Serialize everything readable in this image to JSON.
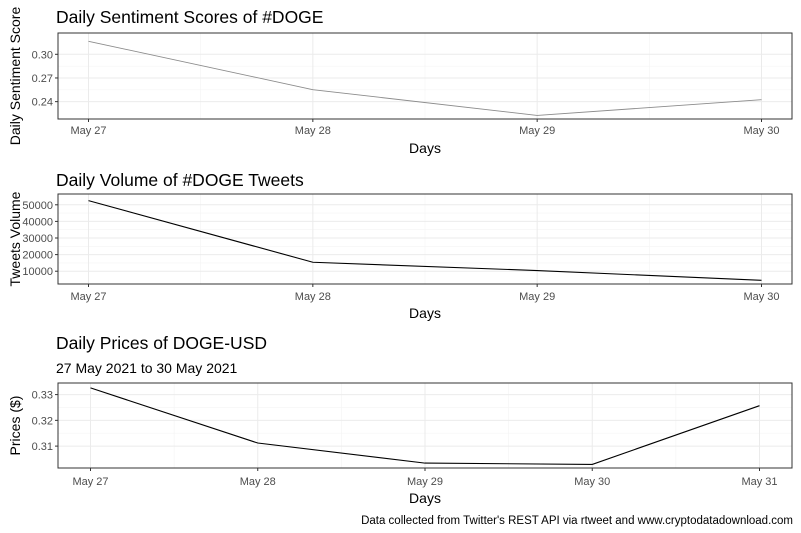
{
  "caption": "Data collected from Twitter's REST API via rtweet and www.cryptodatadownload.com",
  "chart_data": [
    {
      "type": "line",
      "title": "Daily Sentiment Scores of #DOGE",
      "subtitle": "",
      "xlabel": "Days",
      "ylabel": "Daily Sentiment Score",
      "categories": [
        "May 27",
        "May 28",
        "May 29",
        "May 30"
      ],
      "yticks": [
        0.24,
        0.27,
        0.3
      ],
      "ytick_labels": [
        "0.24",
        "0.27",
        "0.30"
      ],
      "ylim": [
        0.218,
        0.327
      ],
      "line_color": "#8c8c8c",
      "series": [
        {
          "values": [
            0.3165,
            0.2552,
            0.2225,
            0.2425
          ]
        }
      ]
    },
    {
      "type": "line",
      "title": "Daily Volume of #DOGE Tweets",
      "subtitle": "",
      "xlabel": "Days",
      "ylabel": "Tweets Volume",
      "categories": [
        "May 27",
        "May 28",
        "May 29",
        "May 30"
      ],
      "yticks": [
        10000,
        20000,
        30000,
        40000,
        50000
      ],
      "ytick_labels": [
        "10000",
        "20000",
        "30000",
        "40000",
        "50000"
      ],
      "ylim": [
        2300,
        56500
      ],
      "line_color": "#000000",
      "series": [
        {
          "values": [
            52500,
            15400,
            10400,
            4500
          ]
        }
      ]
    },
    {
      "type": "line",
      "title": "Daily Prices of DOGE-USD",
      "subtitle": "27 May 2021 to 30 May 2021",
      "xlabel": "Days",
      "ylabel": "Prices ($)",
      "categories": [
        "May 27",
        "May 28",
        "May 29",
        "May 30",
        "May 31"
      ],
      "yticks": [
        0.31,
        0.32,
        0.33
      ],
      "ytick_labels": [
        "0.31",
        "0.32",
        "0.33"
      ],
      "ylim": [
        0.3015,
        0.3345
      ],
      "line_color": "#000000",
      "series": [
        {
          "values": [
            0.3326,
            0.3112,
            0.3034,
            0.3029,
            0.3257
          ]
        }
      ]
    }
  ]
}
